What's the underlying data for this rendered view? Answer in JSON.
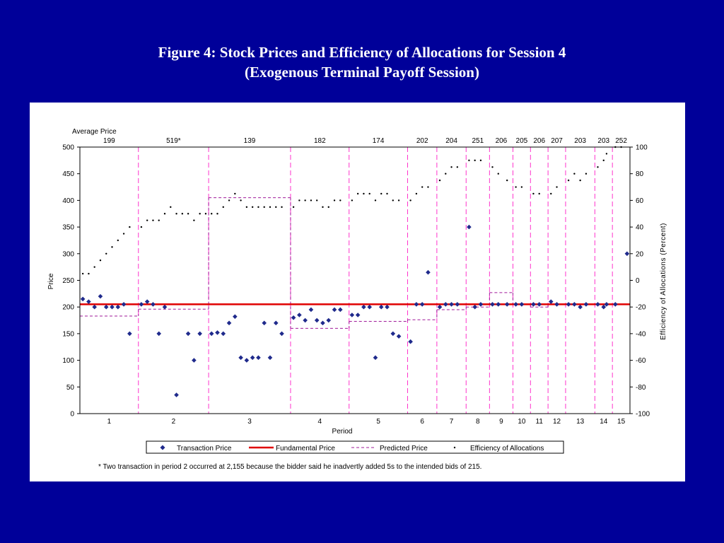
{
  "slide": {
    "title_line1": "Figure 4: Stock Prices and Efficiency of Allocations for Session 4",
    "title_line2": "(Exogenous Terminal Payoff Session)"
  },
  "chart_data": {
    "type": "scatter",
    "avg_price_label": "Average Price",
    "avg_prices": [
      "199",
      "519*",
      "139",
      "182",
      "174",
      "202",
      "204",
      "251",
      "206",
      "205",
      "206",
      "207",
      "203",
      "203",
      "252"
    ],
    "xlabel": "Period",
    "ylabel": "Price",
    "y2label": "Efficiency of Allocations (Percent)",
    "ylim": [
      0,
      500
    ],
    "y2lim": [
      -100,
      100
    ],
    "y_ticks": [
      0,
      50,
      100,
      150,
      200,
      250,
      300,
      350,
      400,
      450,
      500
    ],
    "y2_ticks": [
      -100,
      -80,
      -60,
      -40,
      -20,
      0,
      20,
      40,
      60,
      80,
      100
    ],
    "periods": [
      "1",
      "2",
      "3",
      "4",
      "5",
      "6",
      "7",
      "8",
      "9",
      "10",
      "11",
      "12",
      "13",
      "14",
      "15"
    ],
    "period_boundaries": [
      0,
      10,
      22,
      36,
      46,
      56,
      61,
      66,
      70,
      74,
      77,
      80,
      83,
      88,
      91,
      94
    ],
    "fundamental_price": 205,
    "predicted_prices": [
      183,
      196,
      405,
      160,
      173,
      176,
      195,
      200,
      227,
      205,
      200,
      205,
      205,
      205,
      205
    ],
    "colors": {
      "transaction": "#1f2a8c",
      "fundamental": "#e00000",
      "predicted": "#a0199a",
      "boundary": "#ff33cc"
    },
    "series": [
      {
        "name": "Transaction Price",
        "points": [
          [
            0.5,
            215
          ],
          [
            1.5,
            210
          ],
          [
            2.5,
            200
          ],
          [
            3.5,
            220
          ],
          [
            4.5,
            200
          ],
          [
            5.5,
            200
          ],
          [
            6.5,
            200
          ],
          [
            7.5,
            205
          ],
          [
            8.5,
            150
          ],
          [
            10.5,
            205
          ],
          [
            11.5,
            210
          ],
          [
            12.5,
            205
          ],
          [
            13.5,
            150
          ],
          [
            14.5,
            200
          ],
          [
            16.5,
            35
          ],
          [
            18.5,
            150
          ],
          [
            19.5,
            100
          ],
          [
            20.5,
            150
          ],
          [
            22.5,
            150
          ],
          [
            23.5,
            152
          ],
          [
            24.5,
            150
          ],
          [
            25.5,
            170
          ],
          [
            26.5,
            182
          ],
          [
            27.5,
            105
          ],
          [
            28.5,
            100
          ],
          [
            29.5,
            105
          ],
          [
            30.5,
            105
          ],
          [
            31.5,
            170
          ],
          [
            32.5,
            105
          ],
          [
            33.5,
            170
          ],
          [
            34.5,
            150
          ],
          [
            36.5,
            180
          ],
          [
            37.5,
            185
          ],
          [
            38.5,
            175
          ],
          [
            39.5,
            195
          ],
          [
            40.5,
            175
          ],
          [
            41.5,
            170
          ],
          [
            42.5,
            175
          ],
          [
            43.5,
            195
          ],
          [
            44.5,
            195
          ],
          [
            46.5,
            185
          ],
          [
            47.5,
            185
          ],
          [
            48.5,
            200
          ],
          [
            49.5,
            200
          ],
          [
            50.5,
            105
          ],
          [
            51.5,
            200
          ],
          [
            52.5,
            200
          ],
          [
            53.5,
            150
          ],
          [
            54.5,
            145
          ],
          [
            56.5,
            135
          ],
          [
            57.5,
            205
          ],
          [
            58.5,
            205
          ],
          [
            59.5,
            265
          ],
          [
            61.5,
            200
          ],
          [
            62.5,
            205
          ],
          [
            63.5,
            205
          ],
          [
            64.5,
            205
          ],
          [
            66.5,
            350
          ],
          [
            67.5,
            200
          ],
          [
            68.5,
            205
          ],
          [
            70.5,
            205
          ],
          [
            71.5,
            205
          ],
          [
            73.0,
            205
          ],
          [
            74.5,
            205
          ],
          [
            75.5,
            205
          ],
          [
            77.5,
            205
          ],
          [
            78.5,
            205
          ],
          [
            80.5,
            210
          ],
          [
            81.5,
            205
          ],
          [
            83.5,
            205
          ],
          [
            84.5,
            205
          ],
          [
            85.5,
            200
          ],
          [
            86.5,
            205
          ],
          [
            88.5,
            205
          ],
          [
            89.5,
            200
          ],
          [
            90.0,
            205
          ],
          [
            91.5,
            205
          ],
          [
            93.5,
            300
          ]
        ]
      },
      {
        "name": "Fundamental Price"
      },
      {
        "name": "Predicted Price"
      },
      {
        "name": "Efficiency of Allocations",
        "axis": "right",
        "points": [
          [
            0.5,
            5
          ],
          [
            1.5,
            5
          ],
          [
            2.5,
            10
          ],
          [
            3.5,
            15
          ],
          [
            4.5,
            20
          ],
          [
            5.5,
            25
          ],
          [
            6.5,
            30
          ],
          [
            7.5,
            35
          ],
          [
            8.5,
            40
          ],
          [
            10.5,
            40
          ],
          [
            11.5,
            45
          ],
          [
            12.5,
            45
          ],
          [
            13.5,
            45
          ],
          [
            14.5,
            50
          ],
          [
            15.5,
            55
          ],
          [
            16.5,
            50
          ],
          [
            17.5,
            50
          ],
          [
            18.5,
            50
          ],
          [
            19.5,
            45
          ],
          [
            20.5,
            50
          ],
          [
            21.5,
            50
          ],
          [
            22.5,
            50
          ],
          [
            23.5,
            50
          ],
          [
            24.5,
            55
          ],
          [
            25.5,
            60
          ],
          [
            26.5,
            65
          ],
          [
            27.5,
            60
          ],
          [
            28.5,
            55
          ],
          [
            29.5,
            55
          ],
          [
            30.5,
            55
          ],
          [
            31.5,
            55
          ],
          [
            32.5,
            55
          ],
          [
            33.5,
            55
          ],
          [
            34.5,
            55
          ],
          [
            36.5,
            55
          ],
          [
            37.5,
            60
          ],
          [
            38.5,
            60
          ],
          [
            39.5,
            60
          ],
          [
            40.5,
            60
          ],
          [
            41.5,
            55
          ],
          [
            42.5,
            55
          ],
          [
            43.5,
            60
          ],
          [
            44.5,
            60
          ],
          [
            46.5,
            60
          ],
          [
            47.5,
            65
          ],
          [
            48.5,
            65
          ],
          [
            49.5,
            65
          ],
          [
            50.5,
            60
          ],
          [
            51.5,
            65
          ],
          [
            52.5,
            65
          ],
          [
            53.5,
            60
          ],
          [
            54.5,
            60
          ],
          [
            56.5,
            60
          ],
          [
            57.5,
            65
          ],
          [
            58.5,
            70
          ],
          [
            59.5,
            70
          ],
          [
            61.5,
            75
          ],
          [
            62.5,
            80
          ],
          [
            63.5,
            85
          ],
          [
            64.5,
            85
          ],
          [
            66.5,
            90
          ],
          [
            67.5,
            90
          ],
          [
            68.5,
            90
          ],
          [
            70.5,
            85
          ],
          [
            71.5,
            80
          ],
          [
            73.0,
            75
          ],
          [
            74.5,
            70
          ],
          [
            75.5,
            70
          ],
          [
            77.5,
            65
          ],
          [
            78.5,
            65
          ],
          [
            80.5,
            65
          ],
          [
            81.5,
            70
          ],
          [
            83.5,
            75
          ],
          [
            84.5,
            80
          ],
          [
            85.5,
            75
          ],
          [
            86.5,
            80
          ],
          [
            88.5,
            85
          ],
          [
            89.5,
            90
          ],
          [
            90.0,
            95
          ],
          [
            91.5,
            100
          ],
          [
            92.5,
            100
          ]
        ]
      }
    ],
    "footnote": "* Two transaction in period 2 occurred at 2,155 because the bidder said he inadvertly added 5s to the intended bids of 215."
  }
}
